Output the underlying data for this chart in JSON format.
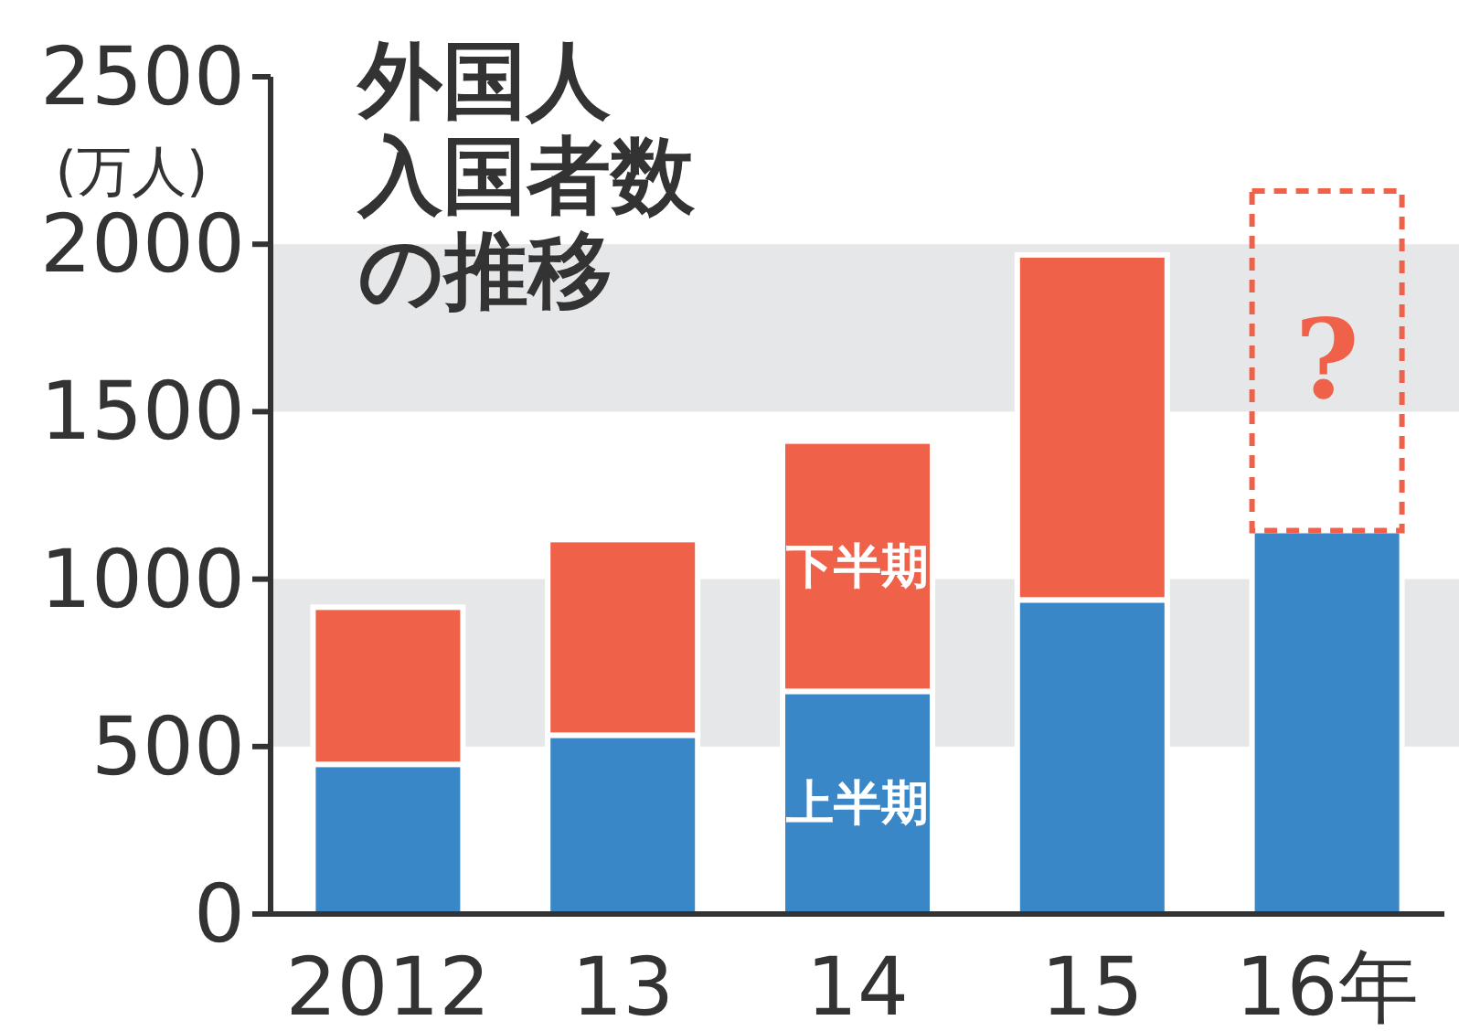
{
  "chart_data": {
    "type": "bar",
    "title": "外国人入国者数の推移",
    "ylabel": "(万人)",
    "stacked": true,
    "legend": false,
    "grid": false,
    "categories": [
      "2012",
      "13",
      "14",
      "15",
      "16年"
    ],
    "series": [
      {
        "name": "上半期",
        "color": "#3a87c8",
        "values": [
          447,
          534,
          665,
          938,
          1145
        ]
      },
      {
        "name": "下半期",
        "color": "#f0614a",
        "values": [
          469,
          584,
          747,
          1030,
          null
        ]
      },
      {
        "color": "#f0614a",
        "line_style": "dashed",
        "values": [
          null,
          null,
          null,
          null,
          1014
        ]
      }
    ],
    "ylim": [
      0,
      2500
    ],
    "yticks": [
      0,
      500,
      1000,
      1500,
      2000,
      2500
    ],
    "bands": [
      {
        "axis": "y",
        "from": 500,
        "to": 1000,
        "color": "#e6e7e8"
      },
      {
        "axis": "y",
        "from": 1500,
        "to": 2000,
        "color": "#e6e7e8"
      }
    ],
    "annotations": [
      "?"
    ]
  }
}
